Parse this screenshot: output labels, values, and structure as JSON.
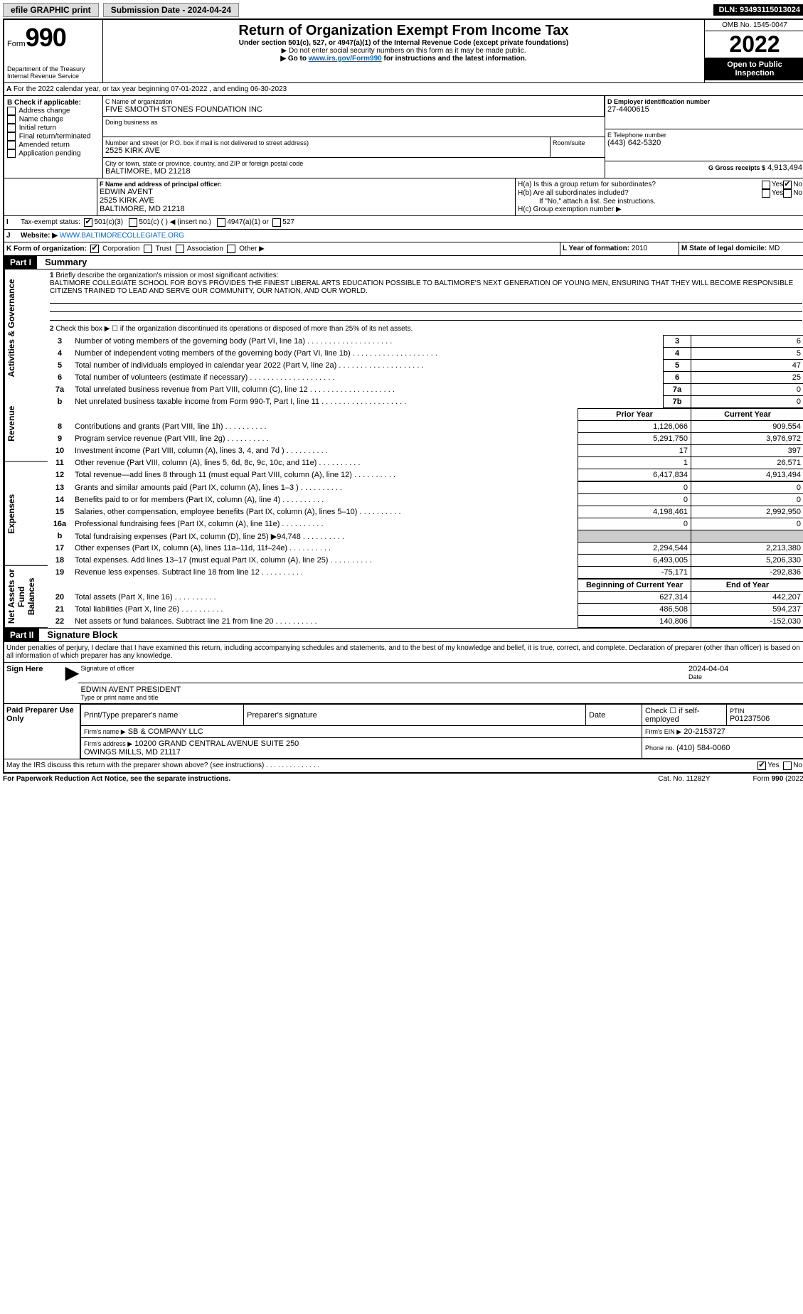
{
  "topbar": {
    "efile": "efile GRAPHIC print",
    "submission": "Submission Date - 2024-04-24",
    "dln": "DLN: 93493115013024"
  },
  "header": {
    "form_word": "Form",
    "form_no": "990",
    "title": "Return of Organization Exempt From Income Tax",
    "subtitle": "Under section 501(c), 527, or 4947(a)(1) of the Internal Revenue Code (except private foundations)",
    "note1": "▶ Do not enter social security numbers on this form as it may be made public.",
    "note2_pre": "▶ Go to ",
    "note2_link": "www.irs.gov/Form990",
    "note2_post": " for instructions and the latest information.",
    "dept": "Department of the Treasury",
    "irs": "Internal Revenue Service",
    "omb": "OMB No. 1545-0047",
    "year": "2022",
    "otp": "Open to Public Inspection"
  },
  "section_a": {
    "a_line": "For the 2022 calendar year, or tax year beginning 07-01-2022    , and ending 06-30-2023",
    "b_label": "B Check if applicable:",
    "b_opts": [
      "Address change",
      "Name change",
      "Initial return",
      "Final return/terminated",
      "Amended return",
      "Application pending"
    ],
    "c_label": "C Name of organization",
    "c_name": "FIVE SMOOTH STONES FOUNDATION INC",
    "dba": "Doing business as",
    "addr_label": "Number and street (or P.O. box if mail is not delivered to street address)",
    "room": "Room/suite",
    "addr": "2525 KIRK AVE",
    "city_label": "City or town, state or province, country, and ZIP or foreign postal code",
    "city": "BALTIMORE, MD  21218",
    "d_label": "D Employer identification number",
    "d_val": "27-4400615",
    "e_label": "E Telephone number",
    "e_val": "(443) 642-5320",
    "g_label": "G Gross receipts $",
    "g_val": "4,913,494",
    "f_label": "F Name and address of principal officer:",
    "f_name": "EDWIN AVENT",
    "f_addr": "2525 KIRK AVE",
    "f_city": "BALTIMORE, MD  21218",
    "ha": "H(a)  Is this a group return for subordinates?",
    "hb": "H(b)  Are all subordinates included?",
    "h_note": "If \"No,\" attach a list. See instructions.",
    "hc": "H(c)  Group exemption number ▶",
    "yes": "Yes",
    "no": "No",
    "i_label": "Tax-exempt status:",
    "i1": "501(c)(3)",
    "i2": "501(c) (   ) ◀ (insert no.)",
    "i3": "4947(a)(1) or",
    "i4": "527",
    "j_label": "Website: ▶",
    "j_val": "WWW.BALTIMORECOLLEGIATE.ORG",
    "k_label": "K Form of organization:",
    "k1": "Corporation",
    "k2": "Trust",
    "k3": "Association",
    "k4": "Other ▶",
    "l_label": "L Year of formation:",
    "l_val": "2010",
    "m_label": "M State of legal domicile:",
    "m_val": "MD"
  },
  "part1": {
    "hdr": "Part I",
    "title": "Summary",
    "tab_ag": "Activities & Governance",
    "tab_rev": "Revenue",
    "tab_exp": "Expenses",
    "tab_net": "Net Assets or Fund Balances",
    "q1": "Briefly describe the organization's mission or most significant activities:",
    "mission": "BALTIMORE COLLEGIATE SCHOOL FOR BOYS PROVIDES THE FINEST LIBERAL ARTS EDUCATION POSSIBLE TO BALTIMORE'S NEXT GENERATION OF YOUNG MEN, ENSURING THAT THEY WILL BECOME RESPONSIBLE CITIZENS TRAINED TO LEAD AND SERVE OUR COMMUNITY, OUR NATION, AND OUR WORLD.",
    "q2": "Check this box ▶ ☐ if the organization discontinued its operations or disposed of more than 25% of its net assets.",
    "lines_ag": [
      {
        "n": "3",
        "t": "Number of voting members of the governing body (Part VI, line 1a)",
        "box": "3",
        "v": "6"
      },
      {
        "n": "4",
        "t": "Number of independent voting members of the governing body (Part VI, line 1b)",
        "box": "4",
        "v": "5"
      },
      {
        "n": "5",
        "t": "Total number of individuals employed in calendar year 2022 (Part V, line 2a)",
        "box": "5",
        "v": "47"
      },
      {
        "n": "6",
        "t": "Total number of volunteers (estimate if necessary)",
        "box": "6",
        "v": "25"
      },
      {
        "n": "7a",
        "t": "Total unrelated business revenue from Part VIII, column (C), line 12",
        "box": "7a",
        "v": "0"
      },
      {
        "n": "b",
        "t": "Net unrelated business taxable income from Form 990-T, Part I, line 11",
        "box": "7b",
        "v": "0"
      }
    ],
    "col_prior": "Prior Year",
    "col_current": "Current Year",
    "lines_rev": [
      {
        "n": "8",
        "t": "Contributions and grants (Part VIII, line 1h)",
        "p": "1,126,066",
        "c": "909,554"
      },
      {
        "n": "9",
        "t": "Program service revenue (Part VIII, line 2g)",
        "p": "5,291,750",
        "c": "3,976,972"
      },
      {
        "n": "10",
        "t": "Investment income (Part VIII, column (A), lines 3, 4, and 7d )",
        "p": "17",
        "c": "397"
      },
      {
        "n": "11",
        "t": "Other revenue (Part VIII, column (A), lines 5, 6d, 8c, 9c, 10c, and 11e)",
        "p": "1",
        "c": "26,571"
      },
      {
        "n": "12",
        "t": "Total revenue—add lines 8 through 11 (must equal Part VIII, column (A), line 12)",
        "p": "6,417,834",
        "c": "4,913,494"
      }
    ],
    "lines_exp": [
      {
        "n": "13",
        "t": "Grants and similar amounts paid (Part IX, column (A), lines 1–3 )",
        "p": "0",
        "c": "0"
      },
      {
        "n": "14",
        "t": "Benefits paid to or for members (Part IX, column (A), line 4)",
        "p": "0",
        "c": "0"
      },
      {
        "n": "15",
        "t": "Salaries, other compensation, employee benefits (Part IX, column (A), lines 5–10)",
        "p": "4,198,461",
        "c": "2,992,950"
      },
      {
        "n": "16a",
        "t": "Professional fundraising fees (Part IX, column (A), line 11e)",
        "p": "0",
        "c": "0"
      },
      {
        "n": "b",
        "t": "Total fundraising expenses (Part IX, column (D), line 25) ▶94,748",
        "p": "",
        "c": "",
        "gray": true
      },
      {
        "n": "17",
        "t": "Other expenses (Part IX, column (A), lines 11a–11d, 11f–24e)",
        "p": "2,294,544",
        "c": "2,213,380"
      },
      {
        "n": "18",
        "t": "Total expenses. Add lines 13–17 (must equal Part IX, column (A), line 25)",
        "p": "6,493,005",
        "c": "5,206,330"
      },
      {
        "n": "19",
        "t": "Revenue less expenses. Subtract line 18 from line 12",
        "p": "-75,171",
        "c": "-292,836"
      }
    ],
    "col_boy": "Beginning of Current Year",
    "col_eoy": "End of Year",
    "lines_net": [
      {
        "n": "20",
        "t": "Total assets (Part X, line 16)",
        "p": "627,314",
        "c": "442,207"
      },
      {
        "n": "21",
        "t": "Total liabilities (Part X, line 26)",
        "p": "486,508",
        "c": "594,237"
      },
      {
        "n": "22",
        "t": "Net assets or fund balances. Subtract line 21 from line 20",
        "p": "140,806",
        "c": "-152,030"
      }
    ]
  },
  "part2": {
    "hdr": "Part II",
    "title": "Signature Block",
    "decl": "Under penalties of perjury, I declare that I have examined this return, including accompanying schedules and statements, and to the best of my knowledge and belief, it is true, correct, and complete. Declaration of preparer (other than officer) is based on all information of which preparer has any knowledge.",
    "sign_here": "Sign Here",
    "sig_officer": "Signature of officer",
    "date": "Date",
    "sig_date": "2024-04-04",
    "officer_name": "EDWIN AVENT PRESIDENT",
    "type_name": "Type or print name and title",
    "paid": "Paid Preparer Use Only",
    "prep_name_h": "Print/Type preparer's name",
    "prep_sig_h": "Preparer's signature",
    "date_h": "Date",
    "check_if": "Check ☐ if self-employed",
    "ptin_h": "PTIN",
    "ptin": "P01237506",
    "firm_name_l": "Firm's name    ▶",
    "firm_name": "SB & COMPANY LLC",
    "firm_ein_l": "Firm's EIN ▶",
    "firm_ein": "20-2153727",
    "firm_addr_l": "Firm's address ▶",
    "firm_addr": "10200 GRAND CENTRAL AVENUE SUITE 250",
    "firm_addr2": "OWINGS MILLS, MD  21117",
    "phone_l": "Phone no.",
    "phone": "(410) 584-0060",
    "discuss": "May the IRS discuss this return with the preparer shown above? (see instructions)",
    "yes": "Yes",
    "no": "No"
  },
  "footer": {
    "pra": "For Paperwork Reduction Act Notice, see the separate instructions.",
    "cat": "Cat. No. 11282Y",
    "form": "Form 990 (2022)"
  }
}
